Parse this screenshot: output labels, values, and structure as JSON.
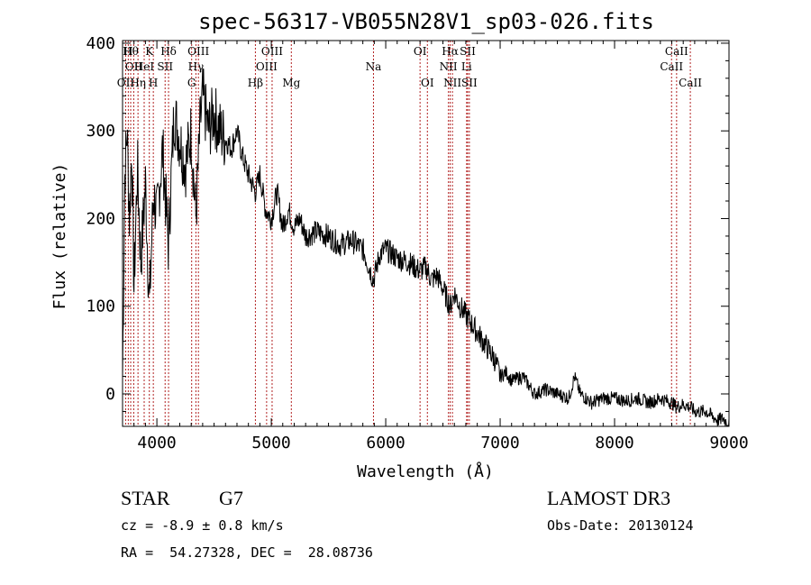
{
  "chart_data": {
    "type": "line",
    "title": "spec-56317-VB055N28V1_sp03-026.fits",
    "xlabel": "Wavelength (Å)",
    "ylabel": "Flux (relative)",
    "xlim": [
      3700,
      9000
    ],
    "ylim": [
      -37,
      403
    ],
    "x_ticks": [
      4000,
      5000,
      6000,
      7000,
      8000,
      9000
    ],
    "x_tick_labels": [
      "4000",
      "5000",
      "6000",
      "7000",
      "8000",
      "9000"
    ],
    "y_ticks": [
      0,
      100,
      200,
      300,
      400
    ],
    "y_tick_labels": [
      "0",
      "100",
      "200",
      "300",
      "400"
    ],
    "line_color": "#000000",
    "marker_color": "#b22222",
    "spectrum": {
      "x": [
        3700,
        3720,
        3740,
        3760,
        3780,
        3800,
        3830,
        3860,
        3900,
        3935,
        3970,
        4000,
        4050,
        4100,
        4150,
        4200,
        4250,
        4300,
        4340,
        4380,
        4400,
        4450,
        4500,
        4550,
        4600,
        4650,
        4700,
        4750,
        4800,
        4861,
        4900,
        4950,
        5000,
        5050,
        5100,
        5150,
        5200,
        5250,
        5300,
        5400,
        5500,
        5600,
        5700,
        5800,
        5893,
        5950,
        6000,
        6100,
        6200,
        6300,
        6350,
        6400,
        6450,
        6500,
        6563,
        6600,
        6650,
        6700,
        6750,
        6800,
        6850,
        6900,
        6950,
        7000,
        7050,
        7100,
        7200,
        7300,
        7400,
        7500,
        7600,
        7650,
        7700,
        7800,
        7900,
        8000,
        8100,
        8200,
        8300,
        8400,
        8500,
        8542,
        8600,
        8662,
        8700,
        8800,
        8850,
        8900,
        8950,
        9000
      ],
      "y": [
        20,
        250,
        300,
        200,
        280,
        120,
        260,
        150,
        240,
        100,
        230,
        200,
        280,
        170,
        320,
        290,
        260,
        300,
        200,
        310,
        340,
        300,
        320,
        300,
        290,
        280,
        300,
        270,
        250,
        230,
        250,
        210,
        200,
        230,
        190,
        210,
        190,
        200,
        180,
        185,
        180,
        170,
        175,
        165,
        130,
        160,
        165,
        155,
        150,
        140,
        145,
        130,
        135,
        120,
        100,
        115,
        100,
        90,
        80,
        70,
        60,
        50,
        40,
        20,
        25,
        15,
        20,
        0,
        5,
        0,
        -5,
        20,
        0,
        -10,
        -5,
        -5,
        -8,
        -5,
        -10,
        -5,
        -10,
        -15,
        -12,
        -15,
        -20,
        -20,
        -25,
        -30,
        -28,
        -35
      ]
    },
    "lines": [
      {
        "wavelength": 3727,
        "label": "OII",
        "row": 3
      },
      {
        "wavelength": 3750,
        "label": "H",
        "row": 1
      },
      {
        "wavelength": 3771,
        "label": "Hθ",
        "row": 1
      },
      {
        "wavelength": 3798,
        "label": "OII",
        "row": 2
      },
      {
        "wavelength": 3835,
        "label": "Hη",
        "row": 3
      },
      {
        "wavelength": 3889,
        "label": "HeI",
        "row": 2
      },
      {
        "wavelength": 3934,
        "label": "K",
        "row": 1
      },
      {
        "wavelength": 3969,
        "label": "H",
        "row": 3
      },
      {
        "wavelength": 4072,
        "label": "SII",
        "row": 2
      },
      {
        "wavelength": 4102,
        "label": "Hδ",
        "row": 1
      },
      {
        "wavelength": 4304,
        "label": "G",
        "row": 3
      },
      {
        "wavelength": 4341,
        "label": "Hγ",
        "row": 2
      },
      {
        "wavelength": 4363,
        "label": "OIII",
        "row": 1
      },
      {
        "wavelength": 4861,
        "label": "Hβ",
        "row": 3
      },
      {
        "wavelength": 4959,
        "label": "OIII",
        "row": 2
      },
      {
        "wavelength": 5007,
        "label": "OIII",
        "row": 1
      },
      {
        "wavelength": 5175,
        "label": "Mg",
        "row": 3
      },
      {
        "wavelength": 5893,
        "label": "Na",
        "row": 2
      },
      {
        "wavelength": 6300,
        "label": "OI",
        "row": 1
      },
      {
        "wavelength": 6364,
        "label": "OI",
        "row": 3
      },
      {
        "wavelength": 6548,
        "label": "NII",
        "row": 2
      },
      {
        "wavelength": 6563,
        "label": "Hα",
        "row": 1
      },
      {
        "wavelength": 6583,
        "label": "NII",
        "row": 3
      },
      {
        "wavelength": 6707,
        "label": "Li",
        "row": 2
      },
      {
        "wavelength": 6716,
        "label": "SII",
        "row": 1
      },
      {
        "wavelength": 6731,
        "label": "SII",
        "row": 3
      },
      {
        "wavelength": 8498,
        "label": "CaII",
        "row": 2
      },
      {
        "wavelength": 8542,
        "label": "CaII",
        "row": 1
      },
      {
        "wavelength": 8662,
        "label": "CaII",
        "row": 3
      }
    ]
  },
  "info": {
    "object_class": "STAR",
    "subclass": "G7",
    "redshift": "cz = -8.9 ± 0.8 km/s",
    "coords": "RA =  54.27328, DEC =  28.08736",
    "survey": "LAMOST DR3",
    "obs_date": "Obs-Date: 20130124"
  }
}
